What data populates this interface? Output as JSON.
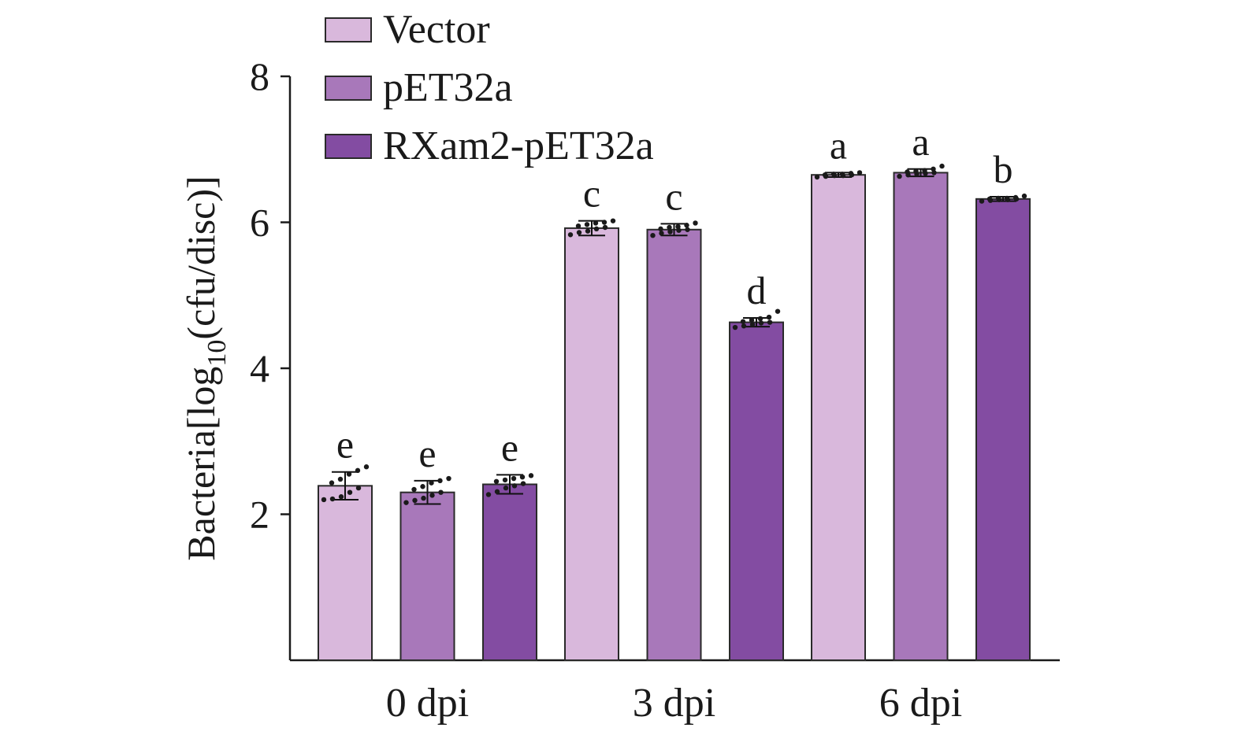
{
  "chart_data": {
    "type": "bar",
    "categories": [
      "0 dpi",
      "3 dpi",
      "6 dpi"
    ],
    "series": [
      {
        "name": "Vector",
        "color": "#d9b8dc",
        "values": [
          2.39,
          5.92,
          6.65
        ],
        "errors": [
          0.19,
          0.1,
          0.03
        ],
        "letters": [
          "e",
          "c",
          "a"
        ],
        "points": [
          [
            2.2,
            2.21,
            2.24,
            2.3,
            2.36,
            2.43,
            2.48,
            2.55,
            2.6,
            2.65
          ],
          [
            5.83,
            5.86,
            5.88,
            5.91,
            5.93,
            5.95,
            5.97,
            5.99,
            6.0,
            6.02
          ],
          [
            6.62,
            6.63,
            6.64,
            6.64,
            6.65,
            6.65,
            6.66,
            6.66,
            6.67,
            6.68
          ]
        ]
      },
      {
        "name": "pET32a",
        "color": "#a878ba",
        "values": [
          2.3,
          5.9,
          6.68
        ],
        "errors": [
          0.16,
          0.08,
          0.05
        ],
        "letters": [
          "e",
          "c",
          "a"
        ],
        "points": [
          [
            2.16,
            2.19,
            2.22,
            2.26,
            2.3,
            2.34,
            2.38,
            2.43,
            2.46,
            2.49
          ],
          [
            5.82,
            5.85,
            5.87,
            5.89,
            5.9,
            5.91,
            5.93,
            5.94,
            5.96,
            5.99
          ],
          [
            6.63,
            6.65,
            6.66,
            6.67,
            6.68,
            6.69,
            6.7,
            6.71,
            6.73,
            6.77
          ]
        ]
      },
      {
        "name": "RXam2-pET32a",
        "color": "#834ca2",
        "values": [
          2.41,
          4.63,
          6.32
        ],
        "errors": [
          0.13,
          0.06,
          0.03
        ],
        "letters": [
          "e",
          "d",
          "b"
        ],
        "points": [
          [
            2.27,
            2.31,
            2.36,
            2.39,
            2.42,
            2.45,
            2.47,
            2.49,
            2.51,
            2.53
          ],
          [
            4.56,
            4.58,
            4.6,
            4.62,
            4.63,
            4.64,
            4.66,
            4.68,
            4.7,
            4.78
          ],
          [
            6.29,
            6.3,
            6.31,
            6.31,
            6.32,
            6.32,
            6.33,
            6.33,
            6.34,
            6.36
          ]
        ]
      }
    ],
    "ylabel": "Bacteria[log",
    "ylabel_subscript": "10",
    "ylabel_rest": "(cfu/disc)]",
    "xlabel": "",
    "ylim": [
      0,
      8
    ],
    "yticks": [
      2,
      4,
      6,
      8
    ],
    "ytick_labels": [
      "2",
      "4",
      "6",
      "8"
    ],
    "grid": false,
    "legend_position": "top-left",
    "error_bars": true,
    "colors": {
      "axis": "#1a1a1a",
      "bar_stroke": "#2a2a2a",
      "text": "#1a1a1a"
    }
  }
}
